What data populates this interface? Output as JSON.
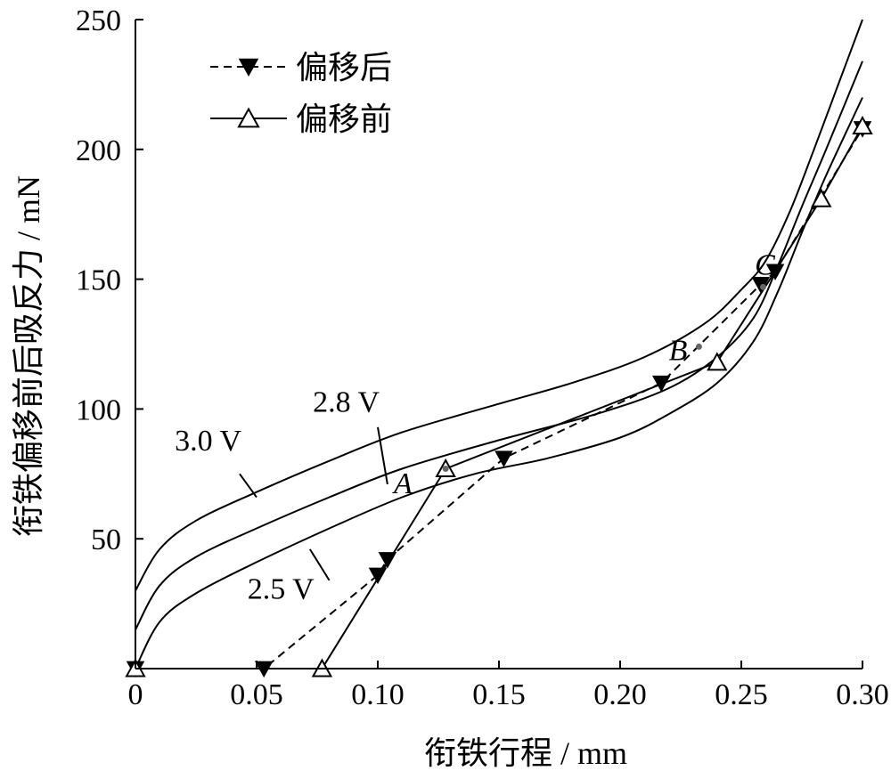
{
  "chart_data": {
    "type": "line",
    "xlabel": "衔铁行程 / mm",
    "ylabel": "衔铁偏移前后吸反力 / mN",
    "xlim": [
      0,
      0.3
    ],
    "ylim": [
      0,
      250
    ],
    "x_ticks": [
      {
        "value": 0,
        "label": "0"
      },
      {
        "value": 0.05,
        "label": "0.05"
      },
      {
        "value": 0.1,
        "label": "0.10"
      },
      {
        "value": 0.15,
        "label": "0.15"
      },
      {
        "value": 0.2,
        "label": "0.20"
      },
      {
        "value": 0.25,
        "label": "0.25"
      },
      {
        "value": 0.3,
        "label": "0.30"
      }
    ],
    "y_ticks": [
      {
        "value": 50,
        "label": "50"
      },
      {
        "value": 100,
        "label": "100"
      },
      {
        "value": 150,
        "label": "150"
      },
      {
        "value": 200,
        "label": "200"
      },
      {
        "value": 250,
        "label": "250"
      }
    ],
    "grid": false,
    "legend_position": "top-left",
    "series": [
      {
        "name": "偏移后",
        "marker": "filled-down-triangle",
        "line_style": "dashed",
        "points": [
          [
            0,
            0
          ],
          [
            0.053,
            0
          ],
          [
            0.1,
            36
          ],
          [
            0.104,
            42
          ],
          [
            0.152,
            81
          ],
          [
            0.217,
            110
          ],
          [
            0.258,
            148
          ],
          [
            0.264,
            153
          ],
          [
            0.3,
            208
          ]
        ]
      },
      {
        "name": "偏移前",
        "marker": "open-up-triangle",
        "line_style": "solid",
        "points": [
          [
            0,
            0
          ],
          [
            0.077,
            0
          ],
          [
            0.128,
            77
          ],
          [
            0.24,
            118
          ],
          [
            0.283,
            181
          ],
          [
            0.3,
            209
          ]
        ]
      }
    ],
    "curves": [
      {
        "label": "3.0 V",
        "points": [
          [
            0,
            30
          ],
          [
            0.01,
            46
          ],
          [
            0.025,
            57
          ],
          [
            0.05,
            68
          ],
          [
            0.08,
            80
          ],
          [
            0.11,
            91
          ],
          [
            0.15,
            102
          ],
          [
            0.18,
            110
          ],
          [
            0.21,
            120
          ],
          [
            0.235,
            133
          ],
          [
            0.25,
            146
          ],
          [
            0.26,
            157
          ],
          [
            0.27,
            176
          ],
          [
            0.28,
            200
          ],
          [
            0.29,
            225
          ],
          [
            0.3,
            250
          ]
        ]
      },
      {
        "label": "2.8 V",
        "points": [
          [
            0,
            15
          ],
          [
            0.01,
            32
          ],
          [
            0.025,
            43
          ],
          [
            0.05,
            54
          ],
          [
            0.08,
            66
          ],
          [
            0.11,
            77
          ],
          [
            0.15,
            88
          ],
          [
            0.19,
            98
          ],
          [
            0.22,
            108
          ],
          [
            0.24,
            120
          ],
          [
            0.255,
            135
          ],
          [
            0.265,
            155
          ],
          [
            0.275,
            178
          ],
          [
            0.285,
            200
          ],
          [
            0.3,
            234
          ]
        ]
      },
      {
        "label": "2.5 V",
        "points": [
          [
            0,
            0
          ],
          [
            0.01,
            18
          ],
          [
            0.025,
            29
          ],
          [
            0.05,
            41
          ],
          [
            0.08,
            54
          ],
          [
            0.11,
            66
          ],
          [
            0.14,
            75
          ],
          [
            0.17,
            81
          ],
          [
            0.2,
            89
          ],
          [
            0.22,
            98
          ],
          [
            0.24,
            110
          ],
          [
            0.255,
            126
          ],
          [
            0.265,
            145
          ],
          [
            0.275,
            168
          ],
          [
            0.285,
            190
          ],
          [
            0.3,
            220
          ]
        ]
      }
    ],
    "curve_labels": [
      {
        "text": "3.0 V",
        "at": [
          0.03,
          84
        ],
        "leader": [
          [
            0.043,
            75
          ],
          [
            0.05,
            66
          ]
        ]
      },
      {
        "text": "2.8 V",
        "at": [
          0.087,
          99
        ],
        "leader": [
          [
            0.1,
            93
          ],
          [
            0.104,
            71
          ]
        ]
      },
      {
        "text": "2.5 V",
        "at": [
          0.06,
          27
        ],
        "leader": [
          [
            0.08,
            34
          ],
          [
            0.072,
            46
          ]
        ]
      }
    ],
    "point_labels": [
      {
        "text": "A",
        "at": [
          0.12,
          71
        ]
      },
      {
        "text": "B",
        "at": [
          0.232,
          123
        ]
      },
      {
        "text": "C",
        "at": [
          0.259,
          147
        ]
      }
    ]
  }
}
